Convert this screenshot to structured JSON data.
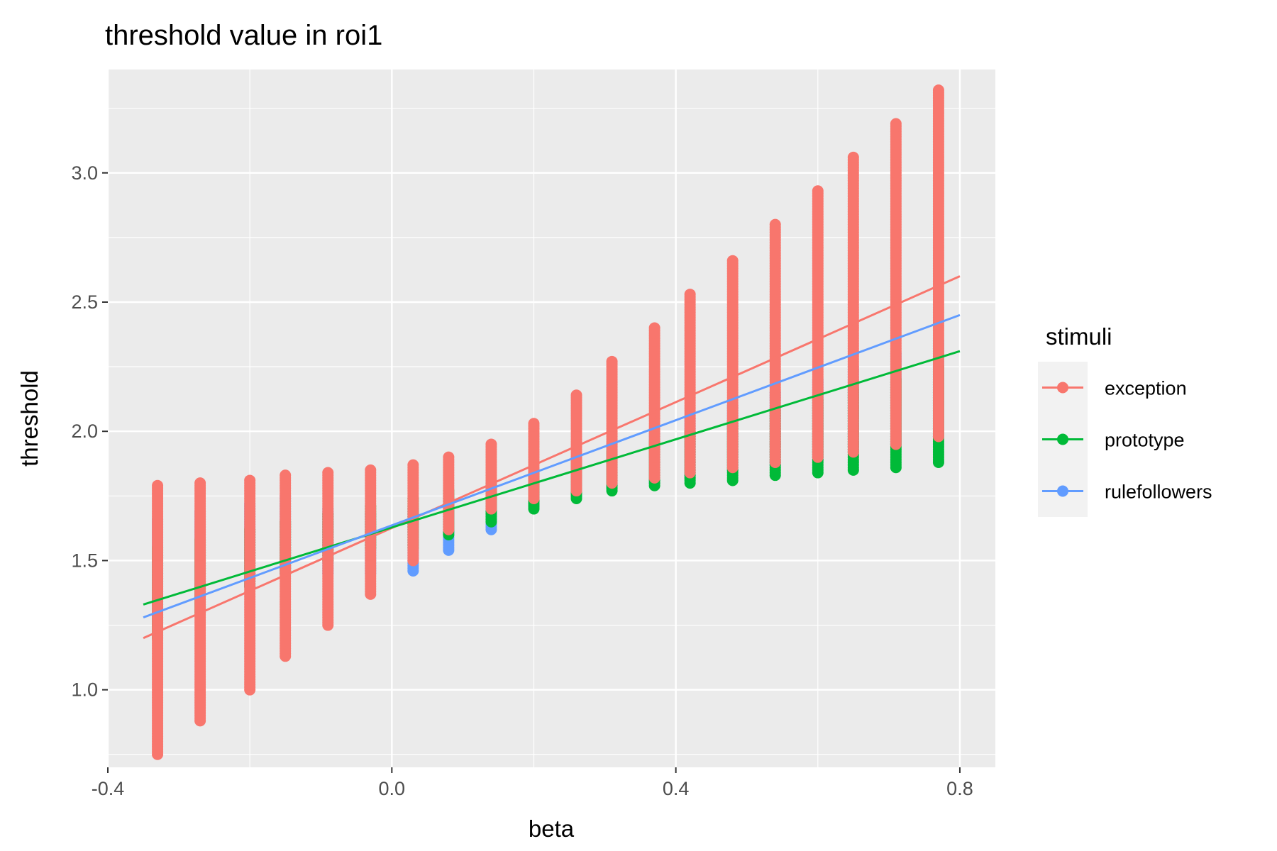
{
  "chart_data": {
    "type": "scatter",
    "title": "threshold value in roi1",
    "xlabel": "beta",
    "ylabel": "threshold",
    "xlim": [
      -0.4,
      0.85
    ],
    "ylim": [
      0.7,
      3.4
    ],
    "x_ticks": [
      -0.4,
      0.0,
      0.4,
      0.8
    ],
    "x_tick_labels": [
      "-0.4",
      "0.0",
      "0.4",
      "0.8"
    ],
    "y_ticks": [
      1.0,
      1.5,
      2.0,
      2.5,
      3.0
    ],
    "y_tick_labels": [
      "1.0",
      "1.5",
      "2.0",
      "2.5",
      "3.0"
    ],
    "grid": true,
    "legend": {
      "title": "stimuli",
      "position": "right"
    },
    "x_levels": [
      -0.33,
      -0.27,
      -0.2,
      -0.15,
      -0.09,
      -0.03,
      0.03,
      0.08,
      0.14,
      0.2,
      0.26,
      0.31,
      0.37,
      0.42,
      0.48,
      0.54,
      0.6,
      0.65,
      0.71,
      0.77
    ],
    "series": [
      {
        "name": "exception",
        "color": "#F8766D",
        "ymin": [
          0.75,
          0.88,
          1.0,
          1.13,
          1.25,
          1.37,
          1.5,
          1.62,
          1.7,
          1.74,
          1.77,
          1.8,
          1.82,
          1.84,
          1.86,
          1.88,
          1.9,
          1.92,
          1.95,
          1.98
        ],
        "ymax": [
          1.79,
          1.8,
          1.81,
          1.83,
          1.84,
          1.85,
          1.87,
          1.9,
          1.95,
          2.03,
          2.14,
          2.27,
          2.4,
          2.53,
          2.66,
          2.8,
          2.93,
          3.06,
          3.19,
          3.32
        ],
        "fit": {
          "x": [
            -0.35,
            0.8
          ],
          "y": [
            1.2,
            2.6
          ]
        }
      },
      {
        "name": "prototype",
        "color": "#00BA38",
        "ymin": [
          1.2,
          1.3,
          1.4,
          1.45,
          1.5,
          1.55,
          1.55,
          1.6,
          1.65,
          1.7,
          1.74,
          1.77,
          1.79,
          1.8,
          1.81,
          1.83,
          1.84,
          1.85,
          1.86,
          1.88
        ],
        "ymax": [
          1.55,
          1.58,
          1.62,
          1.65,
          1.68,
          1.71,
          1.74,
          1.77,
          1.8,
          1.84,
          1.88,
          1.92,
          1.96,
          2.0,
          2.04,
          2.08,
          2.12,
          2.16,
          2.2,
          2.25
        ],
        "fit": {
          "x": [
            -0.35,
            0.8
          ],
          "y": [
            1.33,
            2.31
          ]
        }
      },
      {
        "name": "rulefollowers",
        "color": "#619CFF",
        "ymin": [
          1.25,
          1.35,
          1.4,
          1.45,
          1.45,
          1.45,
          1.46,
          1.54,
          1.62,
          1.71,
          1.75,
          1.78,
          1.8,
          1.82,
          1.85,
          1.87,
          1.89,
          1.92,
          1.95,
          1.98
        ],
        "ymax": [
          1.66,
          1.69,
          1.72,
          1.75,
          1.7,
          1.68,
          1.7,
          1.75,
          1.8,
          1.85,
          1.9,
          1.95,
          2.0,
          2.05,
          2.1,
          2.15,
          2.2,
          2.25,
          2.3,
          2.35
        ],
        "fit": {
          "x": [
            -0.35,
            0.8
          ],
          "y": [
            1.28,
            2.45
          ]
        }
      }
    ]
  }
}
